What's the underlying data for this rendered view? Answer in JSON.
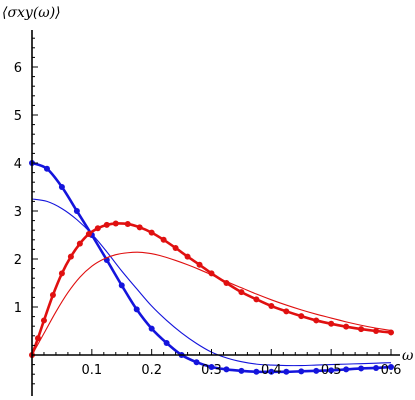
{
  "chart_data": {
    "type": "line",
    "title": "",
    "ylabel": "⟨σxy(ω)⟩",
    "xlabel": "ω",
    "xlim": [
      0,
      0.61
    ],
    "ylim": [
      -0.6,
      7.0
    ],
    "x_ticks": [
      {
        "value": 0.1,
        "label": "0.1"
      },
      {
        "value": 0.2,
        "label": "0.2"
      },
      {
        "value": 0.3,
        "label": "0.3"
      },
      {
        "value": 0.4,
        "label": "0.4"
      },
      {
        "value": 0.5,
        "label": "0.5"
      },
      {
        "value": 0.6,
        "label": "0.6"
      }
    ],
    "y_ticks": [
      {
        "value": 1,
        "label": "1"
      },
      {
        "value": 2,
        "label": "2"
      },
      {
        "value": 3,
        "label": "3"
      },
      {
        "value": 4,
        "label": "4"
      },
      {
        "value": 5,
        "label": "5"
      },
      {
        "value": 6,
        "label": "6"
      }
    ],
    "grid": false,
    "colors": {
      "blue": "#1414dc",
      "red": "#e01010",
      "axis": "#000000"
    },
    "series": [
      {
        "color": "#1414dc",
        "style": "thick-line-with-points",
        "x": [
          0.0,
          0.025,
          0.05,
          0.075,
          0.1,
          0.125,
          0.15,
          0.175,
          0.2,
          0.225,
          0.25,
          0.275,
          0.3,
          0.325,
          0.35,
          0.375,
          0.4,
          0.425,
          0.45,
          0.475,
          0.5,
          0.525,
          0.55,
          0.575,
          0.6
        ],
        "y": [
          4.0,
          3.88,
          3.5,
          3.0,
          2.5,
          1.98,
          1.45,
          0.95,
          0.55,
          0.25,
          0.0,
          -0.15,
          -0.25,
          -0.3,
          -0.33,
          -0.35,
          -0.35,
          -0.35,
          -0.34,
          -0.33,
          -0.32,
          -0.3,
          -0.28,
          -0.27,
          -0.25
        ]
      },
      {
        "color": "#1414dc",
        "style": "thin-line",
        "x": [
          0.0,
          0.025,
          0.05,
          0.075,
          0.1,
          0.125,
          0.15,
          0.175,
          0.2,
          0.225,
          0.25,
          0.275,
          0.3,
          0.325,
          0.35,
          0.375,
          0.4,
          0.425,
          0.45,
          0.475,
          0.5,
          0.525,
          0.55,
          0.575,
          0.6
        ],
        "y": [
          3.25,
          3.2,
          3.05,
          2.82,
          2.52,
          2.15,
          1.75,
          1.38,
          1.02,
          0.72,
          0.46,
          0.24,
          0.06,
          -0.06,
          -0.14,
          -0.19,
          -0.21,
          -0.22,
          -0.22,
          -0.21,
          -0.2,
          -0.19,
          -0.18,
          -0.17,
          -0.16
        ]
      },
      {
        "color": "#e01010",
        "style": "thick-line-with-points",
        "x": [
          0.0,
          0.01,
          0.02,
          0.035,
          0.05,
          0.065,
          0.08,
          0.095,
          0.11,
          0.125,
          0.14,
          0.16,
          0.18,
          0.2,
          0.22,
          0.24,
          0.26,
          0.28,
          0.3,
          0.325,
          0.35,
          0.375,
          0.4,
          0.425,
          0.45,
          0.475,
          0.5,
          0.525,
          0.55,
          0.575,
          0.6
        ],
        "y": [
          0.0,
          0.35,
          0.72,
          1.25,
          1.7,
          2.05,
          2.32,
          2.52,
          2.64,
          2.71,
          2.74,
          2.73,
          2.66,
          2.55,
          2.4,
          2.23,
          2.05,
          1.88,
          1.7,
          1.5,
          1.31,
          1.16,
          1.02,
          0.91,
          0.81,
          0.72,
          0.65,
          0.59,
          0.54,
          0.5,
          0.47
        ]
      },
      {
        "color": "#e01010",
        "style": "thin-line",
        "x": [
          0.0,
          0.02,
          0.04,
          0.06,
          0.08,
          0.1,
          0.12,
          0.14,
          0.16,
          0.18,
          0.2,
          0.22,
          0.24,
          0.26,
          0.28,
          0.3,
          0.325,
          0.35,
          0.375,
          0.4,
          0.425,
          0.45,
          0.475,
          0.5,
          0.525,
          0.55,
          0.575,
          0.6
        ],
        "y": [
          0.0,
          0.45,
          0.9,
          1.3,
          1.62,
          1.85,
          2.0,
          2.09,
          2.13,
          2.14,
          2.11,
          2.05,
          1.97,
          1.88,
          1.78,
          1.67,
          1.53,
          1.4,
          1.27,
          1.15,
          1.04,
          0.94,
          0.85,
          0.77,
          0.69,
          0.62,
          0.56,
          0.51
        ]
      }
    ]
  }
}
